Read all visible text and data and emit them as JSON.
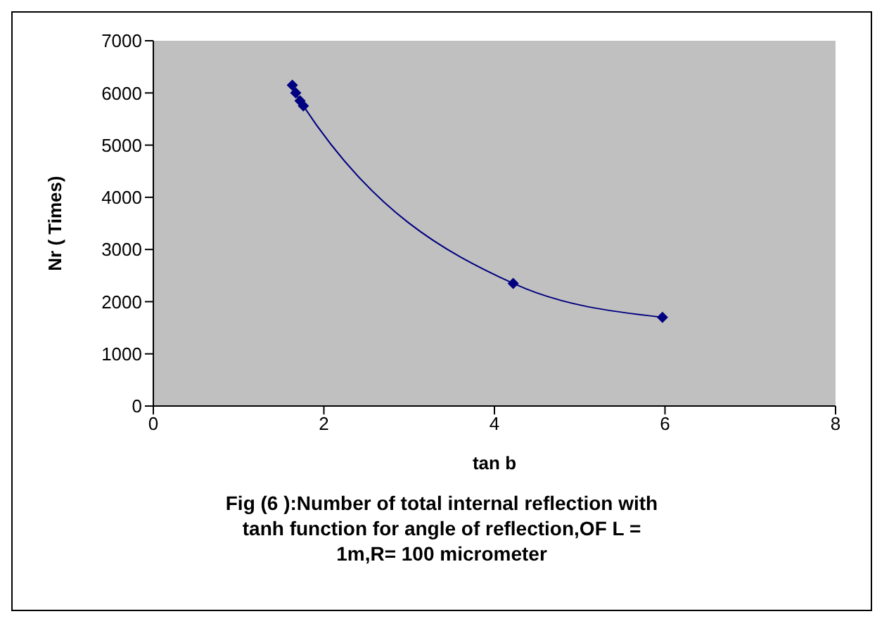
{
  "chart_data": {
    "type": "line",
    "title": "Fig (6 ):Number of total internal reflection with tanh function for angle of reflection,OF L = 1m,R= 100 micrometer",
    "xlabel": "tan b",
    "ylabel": "Nr ( Times)",
    "x": [
      1.63,
      1.67,
      1.72,
      1.76,
      4.22,
      5.97
    ],
    "series": [
      {
        "color": "#000080",
        "values": [
          6150,
          6000,
          5850,
          5750,
          2350,
          1700
        ]
      }
    ],
    "xlim": [
      0,
      8
    ],
    "xticks": [
      0,
      2,
      4,
      6,
      8
    ],
    "ylim": [
      0,
      7000
    ],
    "yticks": [
      0,
      1000,
      2000,
      3000,
      4000,
      5000,
      6000,
      7000
    ],
    "grid": false,
    "legend": false,
    "marker": "diamond",
    "line_style": "solid"
  }
}
